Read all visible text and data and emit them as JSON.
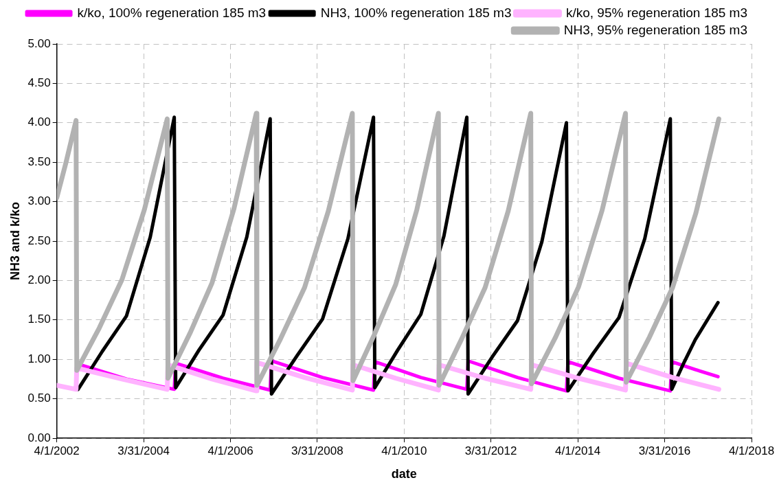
{
  "chart_data": {
    "type": "line",
    "xlabel": "date",
    "ylabel": "NH3 and k/ko",
    "xlim": [
      "2002-04-01",
      "2018-04-01"
    ],
    "xticks": [
      {
        "value": "2002-04-01",
        "label": "4/1/2002"
      },
      {
        "value": "2004-03-31",
        "label": "3/31/2004"
      },
      {
        "value": "2006-04-01",
        "label": "4/1/2006"
      },
      {
        "value": "2008-03-31",
        "label": "3/31/2008"
      },
      {
        "value": "2010-04-01",
        "label": "4/1/2010"
      },
      {
        "value": "2012-03-31",
        "label": "3/31/2012"
      },
      {
        "value": "2014-04-01",
        "label": "4/1/2014"
      },
      {
        "value": "2016-03-31",
        "label": "3/31/2016"
      },
      {
        "value": "2018-04-01",
        "label": "4/1/2018"
      }
    ],
    "ylim": [
      0,
      5
    ],
    "yticks": [
      {
        "value": 0,
        "label": "0.00"
      },
      {
        "value": 0.5,
        "label": "0.50"
      },
      {
        "value": 1,
        "label": "1.00"
      },
      {
        "value": 1.5,
        "label": "1.50"
      },
      {
        "value": 2,
        "label": "2.00"
      },
      {
        "value": 2.5,
        "label": "2.50"
      },
      {
        "value": 3,
        "label": "3.00"
      },
      {
        "value": 3.5,
        "label": "3.50"
      },
      {
        "value": 4,
        "label": "4.00"
      },
      {
        "value": 4.5,
        "label": "4.50"
      },
      {
        "value": 5,
        "label": "5.00"
      }
    ],
    "grid": true,
    "legend": "top right",
    "marker": "none",
    "line_style": "solid",
    "series": [
      {
        "name": "k/ko, 100% regeneration 185 m3",
        "color": "#ff00ff",
        "x": [
          "2002-09-27",
          "2003-11-08",
          "2004-12-14",
          "2004-12-26",
          "2006-01-28",
          "2007-03-01",
          "2007-03-12",
          "2008-05-14",
          "2009-07-17",
          "2009-07-28",
          "2010-08-19",
          "2011-09-10",
          "2011-09-21",
          "2012-11-09",
          "2013-12-26",
          "2014-01-08",
          "2015-03-13",
          "2016-05-18",
          "2016-05-30",
          "2016-12-14",
          "2017-06-23"
        ],
        "values": [
          0.94,
          0.75,
          0.62,
          0.95,
          0.76,
          0.61,
          0.98,
          0.77,
          0.61,
          0.97,
          0.77,
          0.62,
          0.98,
          0.77,
          0.6,
          0.97,
          0.76,
          0.6,
          0.97,
          0.87,
          0.78
        ]
      },
      {
        "name": "NH3, 100% regeneration 185 m3",
        "color": "#000000",
        "x": [
          "2002-09-27",
          "2003-04-18",
          "2003-11-08",
          "2004-05-26",
          "2004-12-14",
          "2004-12-26",
          "2005-07-11",
          "2006-01-28",
          "2006-08-16",
          "2007-03-01",
          "2007-03-12",
          "2007-10-15",
          "2008-05-14",
          "2008-12-14",
          "2009-07-17",
          "2009-07-28",
          "2010-02-07",
          "2010-08-19",
          "2011-03-01",
          "2011-09-10",
          "2011-09-21",
          "2012-04-15",
          "2012-11-09",
          "2013-06-02",
          "2013-12-26",
          "2014-01-08",
          "2014-08-10",
          "2015-03-13",
          "2015-10-16",
          "2016-05-18",
          "2016-05-30",
          "2016-09-10",
          "2016-12-14",
          "2017-06-23"
        ],
        "values": [
          0.62,
          1.1,
          1.55,
          2.55,
          4.07,
          0.64,
          1.12,
          1.56,
          2.55,
          4.05,
          0.56,
          1.05,
          1.51,
          2.53,
          4.07,
          0.64,
          1.12,
          1.57,
          2.56,
          4.07,
          0.56,
          1.04,
          1.49,
          2.49,
          4.0,
          0.6,
          1.08,
          1.53,
          2.53,
          4.05,
          0.62,
          0.96,
          1.25,
          1.72
        ]
      },
      {
        "name": "k/ko, 95% regeneration 185 m3",
        "color": "#ffb3ff",
        "x": [
          "2002-04-01",
          "2002-09-10",
          "2002-09-16",
          "2003-10-01",
          "2004-10-16",
          "2004-10-22",
          "2005-10-28",
          "2006-11-04",
          "2006-11-09",
          "2007-12-15",
          "2009-01-20",
          "2009-01-26",
          "2010-01-20",
          "2011-01-14",
          "2011-01-20",
          "2012-02-11",
          "2013-03-01",
          "2013-03-07",
          "2014-04-07",
          "2015-05-07",
          "2015-05-13",
          "2016-06-06",
          "2017-06-30"
        ],
        "values": [
          0.67,
          0.62,
          0.89,
          0.75,
          0.62,
          0.93,
          0.75,
          0.6,
          0.96,
          0.77,
          0.61,
          0.93,
          0.76,
          0.61,
          0.93,
          0.76,
          0.62,
          0.93,
          0.76,
          0.61,
          0.95,
          0.77,
          0.62
        ]
      },
      {
        "name": "NH3, 95% regeneration 185 m3",
        "color": "#b2b2b2",
        "x": [
          "2002-04-01",
          "2002-06-18",
          "2002-09-10",
          "2002-09-16",
          "2003-03-25",
          "2003-10-01",
          "2004-04-07",
          "2004-10-16",
          "2004-10-22",
          "2005-04-25",
          "2005-10-28",
          "2006-04-30",
          "2006-11-04",
          "2006-11-09",
          "2007-05-27",
          "2007-12-15",
          "2008-07-02",
          "2009-01-20",
          "2009-01-26",
          "2009-07-23",
          "2010-01-20",
          "2010-07-17",
          "2011-01-14",
          "2011-01-20",
          "2011-07-29",
          "2012-02-11",
          "2012-08-23",
          "2013-03-01",
          "2013-03-07",
          "2013-09-22",
          "2014-04-07",
          "2014-10-22",
          "2015-05-07",
          "2015-05-13",
          "2015-11-24",
          "2016-06-06",
          "2016-12-18",
          "2017-06-30"
        ],
        "values": [
          3.05,
          3.5,
          4.03,
          0.86,
          1.4,
          2.01,
          2.9,
          4.05,
          0.76,
          1.33,
          1.97,
          2.91,
          4.12,
          0.67,
          1.26,
          1.91,
          2.88,
          4.12,
          0.73,
          1.31,
          1.95,
          2.9,
          4.12,
          0.67,
          1.26,
          1.91,
          2.88,
          4.12,
          0.69,
          1.27,
          1.92,
          2.89,
          4.12,
          0.71,
          1.28,
          1.91,
          2.85,
          4.05
        ]
      }
    ]
  }
}
